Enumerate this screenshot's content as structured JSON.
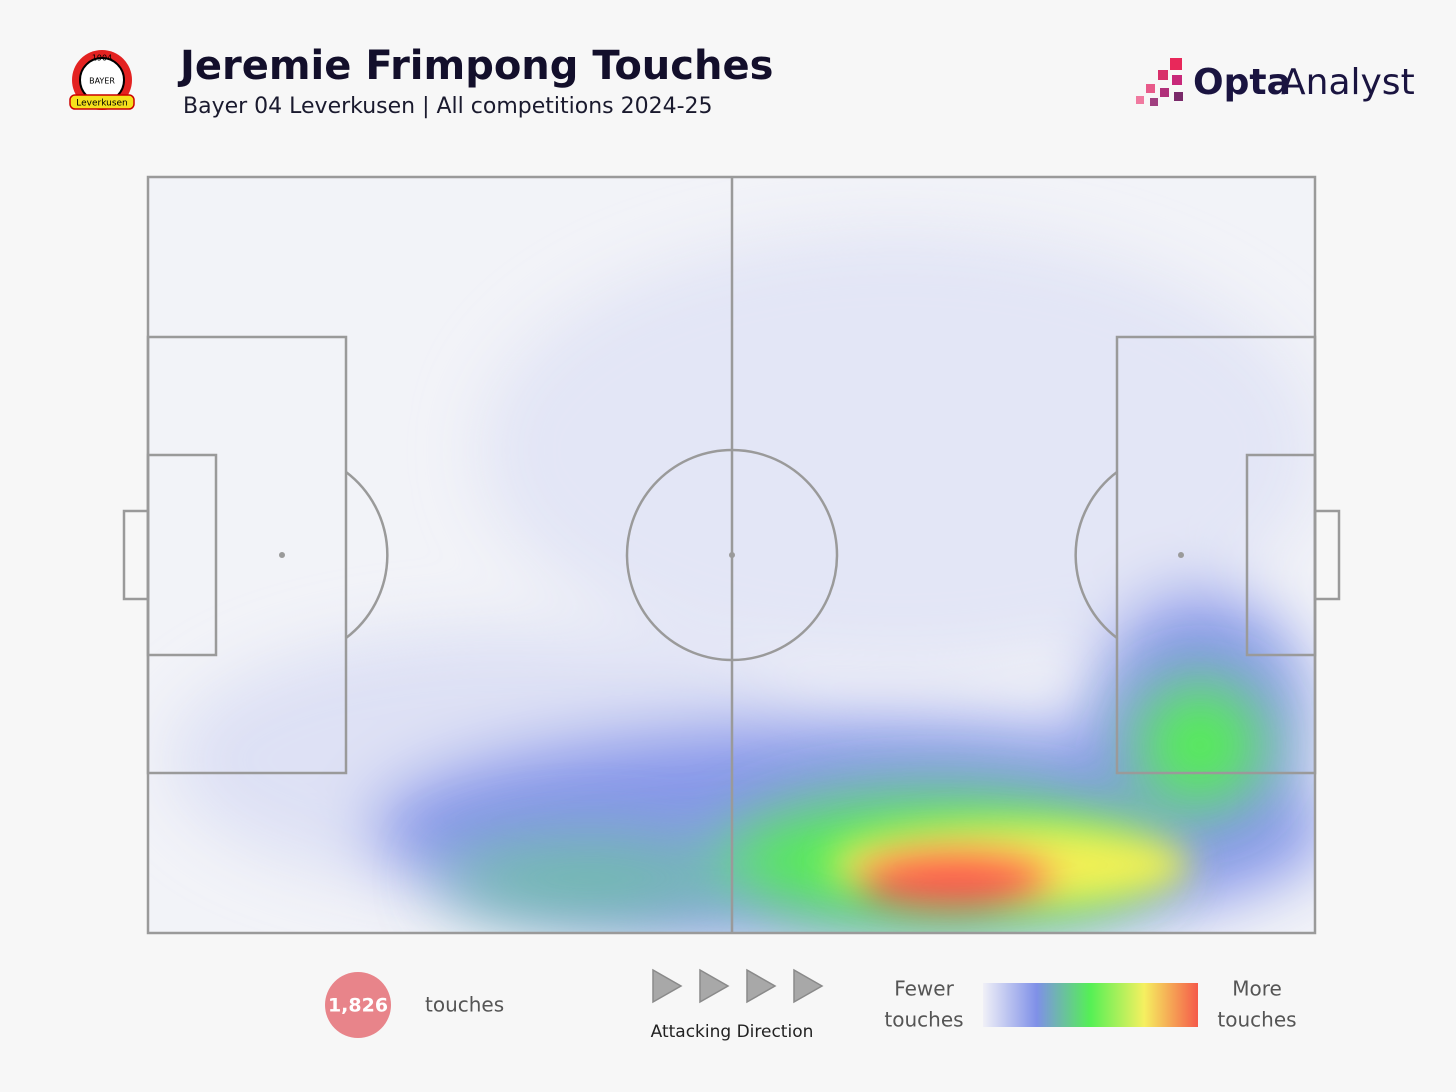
{
  "header": {
    "title": "Jeremie Frimpong Touches",
    "subtitle": "Bayer 04 Leverkusen | All competitions 2024-25",
    "badge": {
      "year": "1904",
      "name": "BAYER",
      "club": "Leverkusen"
    },
    "logo": {
      "bold": "Opta",
      "light": "Analyst"
    }
  },
  "footer": {
    "touches_count": "1,826",
    "touches_label": "touches",
    "direction_label": "Attacking Direction",
    "legend_low": [
      "Fewer",
      "touches"
    ],
    "legend_high": [
      "More",
      "touches"
    ]
  }
}
